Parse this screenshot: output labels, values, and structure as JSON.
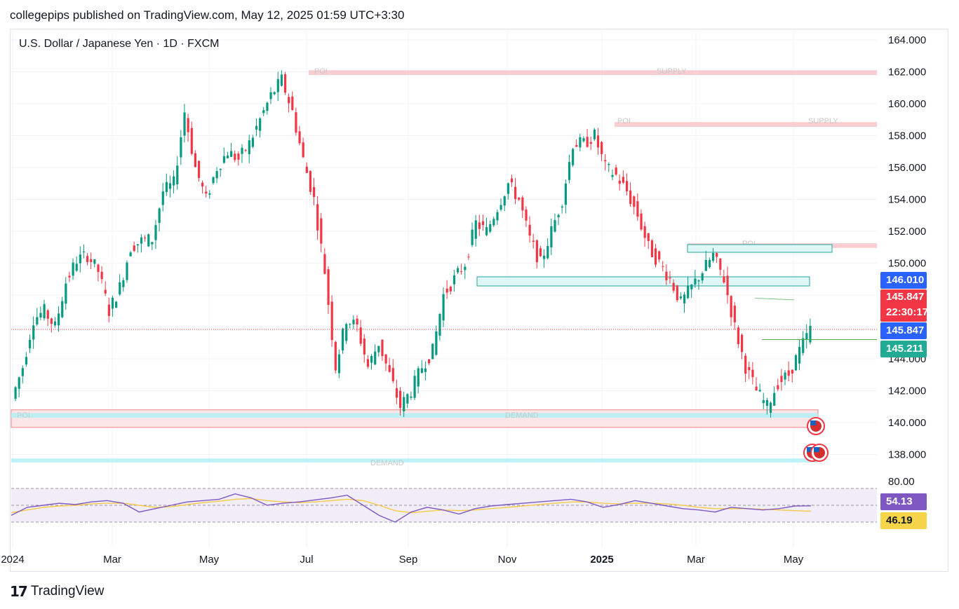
{
  "header": {
    "publisher_line": "collegepips published on TradingView.com, May 12, 2025 01:59 UTC+3:30",
    "symbol_line": "U.S. Dollar / Japanese Yen · 1D · FXCM"
  },
  "footer": {
    "brand": "TradingView",
    "brand_mark": "17"
  },
  "colors": {
    "up": "#089981",
    "down": "#f23645",
    "supply": "#f7c6cb",
    "demand": "#b2f0f5",
    "rsi": "#7e57c2",
    "rsi_ma": "#f7c948",
    "rsi_band": "#ede7f6"
  },
  "zone_labels": {
    "poi": "POI",
    "supply": "SUPPLY",
    "demand": "DEMAND"
  },
  "price_labels": [
    {
      "text": "146.010",
      "value": 146.01,
      "color": "#2962ff"
    },
    {
      "text": "145.847",
      "value": 145.847,
      "color": "#f23645",
      "countdown": "22:30:17"
    },
    {
      "text": "145.847",
      "value": 145.847,
      "color": "#2962ff"
    },
    {
      "text": "145.211",
      "value": 145.211,
      "color": "#22ab94"
    }
  ],
  "rsi_labels": [
    {
      "text": "54.13",
      "value": 54.13,
      "color": "#7e57c2"
    },
    {
      "text": "46.19",
      "value": 46.19,
      "color": "#f7d54a"
    }
  ],
  "chart_data": {
    "type": "candlestick",
    "title": "U.S. Dollar / Japanese Yen · 1D · FXCM",
    "x_ticks": [
      "2024",
      "Mar",
      "May",
      "Jul",
      "Sep",
      "Nov",
      "2025",
      "Mar",
      "May"
    ],
    "y_ticks": [
      "164.000",
      "162.000",
      "160.000",
      "158.000",
      "156.000",
      "154.000",
      "152.000",
      "150.000",
      "148.000",
      "146.000",
      "144.000",
      "142.000",
      "140.000",
      "138.000"
    ],
    "ylim": [
      137.5,
      165.0
    ],
    "price_path": [
      [
        0,
        141.5
      ],
      [
        3,
        143.5
      ],
      [
        6,
        146.5
      ],
      [
        9,
        147.0
      ],
      [
        12,
        146.0
      ],
      [
        15,
        148.8
      ],
      [
        18,
        150.2
      ],
      [
        21,
        150.5
      ],
      [
        24,
        149.5
      ],
      [
        27,
        147.0
      ],
      [
        30,
        148.5
      ],
      [
        33,
        151.0
      ],
      [
        36,
        151.4
      ],
      [
        39,
        151.5
      ],
      [
        42,
        154.5
      ],
      [
        45,
        155.0
      ],
      [
        48,
        159.5
      ],
      [
        51,
        156.0
      ],
      [
        54,
        154.0
      ],
      [
        57,
        156.0
      ],
      [
        60,
        157.0
      ],
      [
        63,
        156.5
      ],
      [
        66,
        157.5
      ],
      [
        69,
        159.0
      ],
      [
        72,
        160.5
      ],
      [
        75,
        161.5
      ],
      [
        78,
        159.5
      ],
      [
        81,
        156.5
      ],
      [
        84,
        154.0
      ],
      [
        87,
        149.5
      ],
      [
        90,
        143.5
      ],
      [
        93,
        146.5
      ],
      [
        96,
        146.0
      ],
      [
        99,
        143.5
      ],
      [
        102,
        145.0
      ],
      [
        105,
        143.0
      ],
      [
        108,
        141.0
      ],
      [
        111,
        142.0
      ],
      [
        114,
        143.5
      ],
      [
        117,
        144.5
      ],
      [
        120,
        148.0
      ],
      [
        123,
        149.0
      ],
      [
        126,
        150.0
      ],
      [
        129,
        152.5
      ],
      [
        132,
        152.0
      ],
      [
        135,
        153.5
      ],
      [
        138,
        155.0
      ],
      [
        141,
        154.0
      ],
      [
        144,
        151.5
      ],
      [
        147,
        150.0
      ],
      [
        150,
        152.0
      ],
      [
        153,
        154.0
      ],
      [
        156,
        157.5
      ],
      [
        159,
        157.5
      ],
      [
        162,
        158.0
      ],
      [
        165,
        156.0
      ],
      [
        168,
        155.5
      ],
      [
        171,
        154.5
      ],
      [
        174,
        153.0
      ],
      [
        177,
        151.0
      ],
      [
        180,
        150.0
      ],
      [
        183,
        149.0
      ],
      [
        186,
        147.5
      ],
      [
        189,
        148.5
      ],
      [
        192,
        149.5
      ],
      [
        195,
        150.5
      ],
      [
        198,
        149.0
      ],
      [
        201,
        146.0
      ],
      [
        204,
        143.5
      ],
      [
        207,
        142.0
      ],
      [
        210,
        141.0
      ],
      [
        213,
        142.5
      ],
      [
        216,
        143.0
      ],
      [
        219,
        144.5
      ],
      [
        222,
        145.847
      ]
    ],
    "zones": [
      {
        "name": "supply-top",
        "from": 161.8,
        "to": 162.1,
        "kind": "supply"
      },
      {
        "name": "supply-mid",
        "from": 158.55,
        "to": 158.85,
        "kind": "supply"
      },
      {
        "name": "supply-right",
        "from": 150.95,
        "to": 151.25,
        "kind": "supply"
      },
      {
        "name": "demand-box",
        "from": 139.7,
        "to": 140.8,
        "kind": "supply"
      },
      {
        "name": "demand-line-1",
        "from": 140.3,
        "to": 140.6,
        "kind": "demand"
      },
      {
        "name": "demand-line-2",
        "from": 137.5,
        "to": 137.75,
        "kind": "demand"
      }
    ],
    "rsi": {
      "y_tick": "80.00",
      "values": [
        40,
        52,
        55,
        58,
        56,
        60,
        62,
        58,
        45,
        50,
        55,
        60,
        62,
        64,
        72,
        66,
        55,
        58,
        60,
        63,
        66,
        70,
        55,
        40,
        30,
        45,
        52,
        48,
        42,
        50,
        54,
        56,
        58,
        60,
        62,
        64,
        60,
        52,
        56,
        62,
        58,
        54,
        50,
        48,
        45,
        52,
        50,
        48,
        50,
        54,
        54.13
      ],
      "ma_values": [
        44,
        48,
        52,
        54,
        55,
        57,
        58,
        58,
        55,
        52,
        53,
        56,
        59,
        61,
        64,
        65,
        62,
        60,
        59,
        60,
        62,
        64,
        62,
        55,
        47,
        44,
        46,
        48,
        47,
        48,
        50,
        52,
        54,
        56,
        58,
        60,
        60,
        58,
        57,
        58,
        58,
        57,
        55,
        52,
        50,
        50,
        50,
        49,
        48,
        47,
        46.19
      ]
    }
  }
}
